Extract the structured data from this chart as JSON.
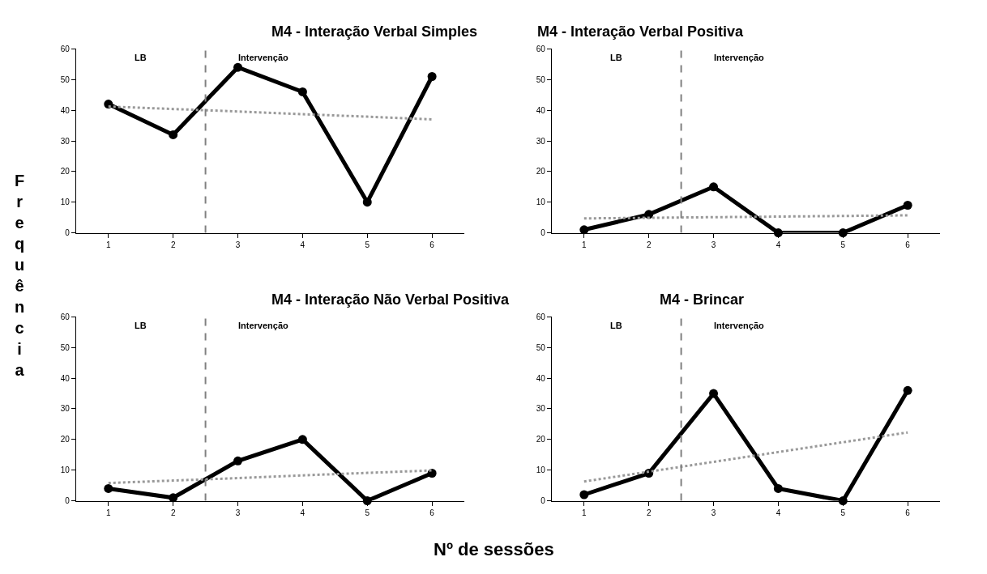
{
  "chart_data": [
    {
      "type": "line",
      "title": "M4 - Interação Verbal Simples",
      "ylabel": "Frequência",
      "x": [
        1,
        2,
        3,
        4,
        5,
        6
      ],
      "xlim": [
        0.5,
        6.5
      ],
      "xticks": [
        1,
        2,
        3,
        4,
        5,
        6
      ],
      "ylim": [
        0,
        60
      ],
      "yticks": [
        0,
        10,
        20,
        30,
        40,
        50,
        60
      ],
      "marker": "circle",
      "annotations": [
        "LB",
        "Intervenção"
      ],
      "ref_lines": [
        {
          "axis": "x",
          "value": 2.5,
          "color": "#808080",
          "line_style": "dashed"
        }
      ],
      "series": [
        {
          "color": "#000000",
          "values": [
            42,
            32,
            54,
            46,
            10,
            51
          ]
        },
        {
          "type": "line",
          "color": "#999999",
          "line_style": "dotted",
          "marker": "none",
          "values": [
            41.2,
            40.4,
            39.6,
            38.7,
            37.9,
            37.0
          ]
        }
      ]
    },
    {
      "type": "line",
      "title": "M4 - Interação Verbal Positiva",
      "x": [
        1,
        2,
        3,
        4,
        5,
        6
      ],
      "xlim": [
        0.5,
        6.5
      ],
      "xticks": [
        1,
        2,
        3,
        4,
        5,
        6
      ],
      "ylim": [
        0,
        60
      ],
      "yticks": [
        0,
        10,
        20,
        30,
        40,
        50,
        60
      ],
      "marker": "circle",
      "annotations": [
        "LB",
        "Intervenção"
      ],
      "ref_lines": [
        {
          "axis": "x",
          "value": 2.5,
          "color": "#808080",
          "line_style": "dashed"
        }
      ],
      "series": [
        {
          "color": "#000000",
          "values": [
            1,
            6,
            15,
            0,
            0,
            9
          ]
        },
        {
          "type": "line",
          "color": "#999999",
          "line_style": "dotted",
          "marker": "none",
          "values": [
            4.7,
            4.9,
            5.1,
            5.3,
            5.5,
            5.7
          ]
        }
      ]
    },
    {
      "type": "line",
      "title": "M4 - Interação Não Verbal Positiva",
      "x": [
        1,
        2,
        3,
        4,
        5,
        6
      ],
      "xlim": [
        0.5,
        6.5
      ],
      "xticks": [
        1,
        2,
        3,
        4,
        5,
        6
      ],
      "ylim": [
        0,
        60
      ],
      "yticks": [
        0,
        10,
        20,
        30,
        40,
        50,
        60
      ],
      "marker": "circle",
      "annotations": [
        "LB",
        "Intervenção"
      ],
      "ref_lines": [
        {
          "axis": "x",
          "value": 2.5,
          "color": "#808080",
          "line_style": "dashed"
        }
      ],
      "series": [
        {
          "color": "#000000",
          "values": [
            4,
            1,
            13,
            20,
            0,
            9
          ]
        },
        {
          "type": "line",
          "color": "#999999",
          "line_style": "dotted",
          "marker": "none",
          "values": [
            5.8,
            6.6,
            7.4,
            8.3,
            9.1,
            9.9
          ]
        }
      ]
    },
    {
      "type": "line",
      "title": "M4 - Brincar",
      "xlabel": "Nº de sessões",
      "x": [
        1,
        2,
        3,
        4,
        5,
        6
      ],
      "xlim": [
        0.5,
        6.5
      ],
      "xticks": [
        1,
        2,
        3,
        4,
        5,
        6
      ],
      "ylim": [
        0,
        60
      ],
      "yticks": [
        0,
        10,
        20,
        30,
        40,
        50,
        60
      ],
      "marker": "circle",
      "annotations": [
        "LB",
        "Intervenção"
      ],
      "ref_lines": [
        {
          "axis": "x",
          "value": 2.5,
          "color": "#808080",
          "line_style": "dashed"
        }
      ],
      "series": [
        {
          "color": "#000000",
          "values": [
            2,
            9,
            35,
            4,
            0,
            36
          ]
        },
        {
          "type": "line",
          "color": "#999999",
          "line_style": "dotted",
          "marker": "none",
          "values": [
            6.3,
            9.5,
            12.7,
            15.9,
            19.1,
            22.3
          ]
        }
      ]
    }
  ]
}
